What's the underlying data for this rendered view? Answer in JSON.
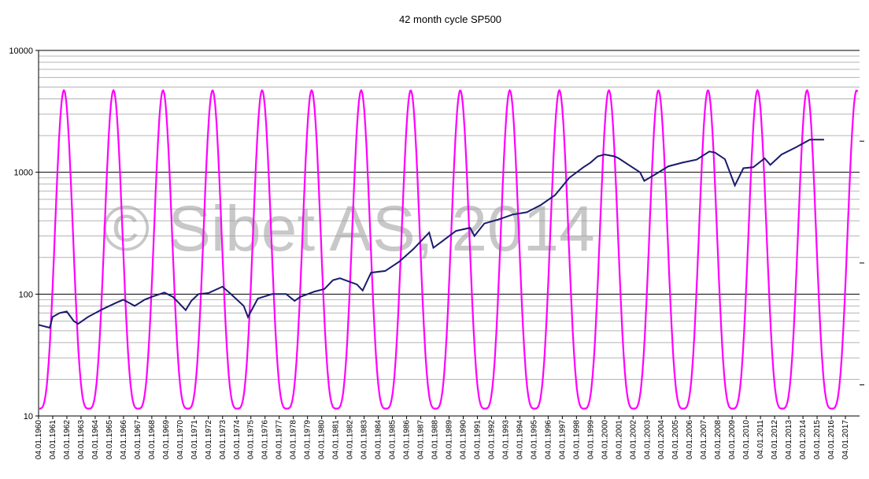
{
  "chart_data": {
    "type": "line",
    "title": "42 month cycle SP500",
    "watermark": "© Sibet AS, 2014",
    "y_scale": "log",
    "ylim": [
      10,
      10000
    ],
    "y_major_ticks": [
      10,
      100,
      1000,
      10000
    ],
    "y_minor_gridlines": true,
    "xlim": [
      "04.01.1960",
      "04.01.2018"
    ],
    "x_tick_labels": [
      "04.01.1960",
      "04.01.1961",
      "04.01.1962",
      "04.01.1963",
      "04.01.1964",
      "04.01.1965",
      "04.01.1966",
      "04.01.1967",
      "04.01.1968",
      "04.01.1969",
      "04.01.1970",
      "04.01.1971",
      "04.01.1972",
      "04.01.1973",
      "04.01.1974",
      "04.01.1975",
      "04.01.1976",
      "04.01.1977",
      "04.01.1978",
      "04.01.1979",
      "04.01.1980",
      "04.01.1981",
      "04.01.1982",
      "04.01.1983",
      "04.01.1984",
      "04.01.1985",
      "04.01.1986",
      "04.01.1987",
      "04.01.1988",
      "04.01.1989",
      "04.01.1990",
      "04.01.1991",
      "04.01.1992",
      "04.01.1993",
      "04.01.1994",
      "04.01.1995",
      "04.01.1996",
      "04.01.1997",
      "04.01.1998",
      "04.01.1999",
      "04.01.2000",
      "04.01.2001",
      "04.01.2002",
      "04.01.2003",
      "04.01.2004",
      "04.01.2005",
      "04.01.2006",
      "04.01.2007",
      "04.01.2008",
      "04.01.2009",
      "04.01.2010",
      "04.01.2011",
      "04.01.2012",
      "04.01.2013",
      "04.01.2014",
      "04.01.2015",
      "04.01.2016",
      "04.01.2017"
    ],
    "series": [
      {
        "color": "#1a1a6e",
        "x": [
          1960.0,
          1960.8,
          1961.0,
          1961.5,
          1962.0,
          1962.5,
          1962.8,
          1963.5,
          1964.5,
          1965.5,
          1966.0,
          1966.8,
          1967.5,
          1968.0,
          1968.9,
          1969.5,
          1970.4,
          1970.8,
          1971.3,
          1972.0,
          1973.0,
          1973.6,
          1974.5,
          1974.8,
          1975.5,
          1976.5,
          1977.5,
          1978.1,
          1978.5,
          1979.5,
          1980.2,
          1980.8,
          1981.3,
          1982.5,
          1982.9,
          1983.5,
          1984.5,
          1985.5,
          1986.5,
          1987.6,
          1987.9,
          1988.5,
          1989.5,
          1990.5,
          1990.8,
          1991.5,
          1992.5,
          1993.5,
          1994.5,
          1995.5,
          1996.5,
          1997.5,
          1998.5,
          1999.0,
          1999.5,
          2000.0,
          2000.7,
          2001.0,
          2001.7,
          2002.5,
          2002.8,
          2003.5,
          2004.5,
          2005.5,
          2006.5,
          2007.4,
          2007.8,
          2008.5,
          2009.2,
          2009.8,
          2010.5,
          2011.3,
          2011.7,
          2012.5,
          2013.5,
          2014.5,
          2015.5
        ],
        "values": [
          56,
          53,
          65,
          70,
          72,
          60,
          57,
          65,
          75,
          85,
          90,
          80,
          90,
          95,
          103,
          95,
          74,
          88,
          100,
          102,
          115,
          100,
          80,
          65,
          92,
          100,
          100,
          88,
          95,
          105,
          110,
          130,
          135,
          120,
          107,
          150,
          155,
          185,
          235,
          320,
          240,
          270,
          330,
          350,
          300,
          380,
          410,
          450,
          470,
          540,
          650,
          900,
          1100,
          1200,
          1350,
          1400,
          1350,
          1300,
          1150,
          1000,
          850,
          950,
          1120,
          1200,
          1270,
          1480,
          1450,
          1280,
          780,
          1080,
          1100,
          1300,
          1150,
          1400,
          1600,
          1850,
          1850
        ]
      },
      {
        "color": "#ff00ff",
        "cycle_months": 42,
        "peak_value": 4700,
        "trough_value": 11.5,
        "peak_dates": [
          1961.8,
          1965.3,
          1968.8,
          1972.3,
          1975.8,
          1979.3,
          1982.8,
          1986.3,
          1989.8,
          1993.3,
          1996.8,
          2000.3,
          2003.8,
          2007.3,
          2010.8,
          2014.3
        ],
        "end_value": 450
      }
    ]
  }
}
